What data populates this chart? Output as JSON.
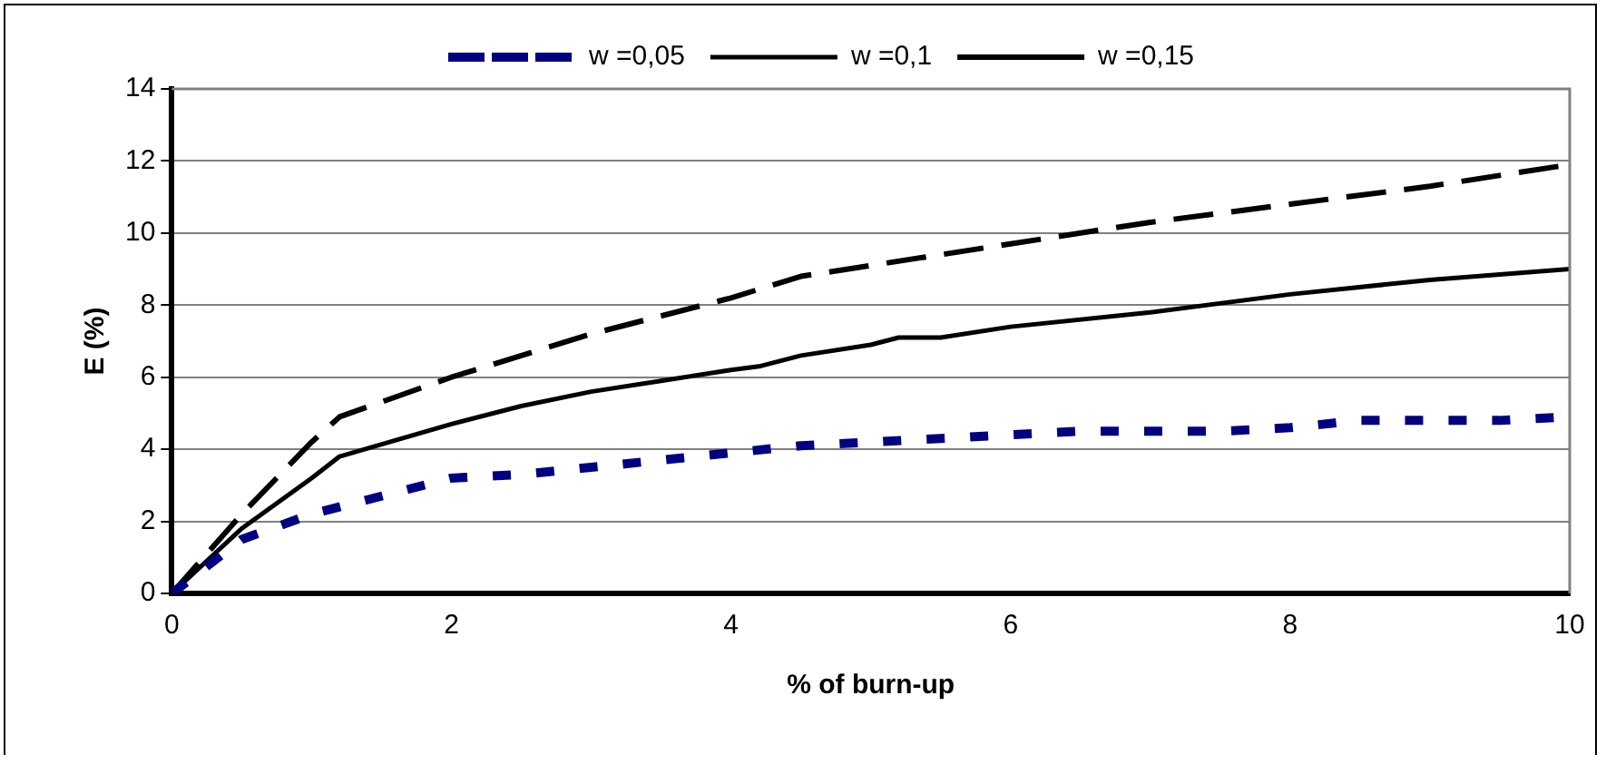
{
  "chart_data": {
    "type": "line",
    "xlabel": "% of burn-up",
    "ylabel": "E (%)",
    "xlim": [
      0,
      10
    ],
    "xticks": [
      0,
      2,
      4,
      6,
      8,
      10
    ],
    "ylim": [
      0,
      14
    ],
    "yticks": [
      0,
      2,
      4,
      6,
      8,
      10,
      12,
      14
    ],
    "grid": "y",
    "legend": "top",
    "marker": "none",
    "series": [
      {
        "name": "w =0,05",
        "color": "#000080",
        "line_style": "dotted",
        "x": [
          0,
          0.5,
          1,
          1.5,
          2,
          2.5,
          3,
          3.5,
          4,
          4.5,
          5,
          5.5,
          6,
          6.5,
          7,
          7.5,
          8,
          8.5,
          9,
          9.5,
          10
        ],
        "values": [
          0,
          1.5,
          2.2,
          2.7,
          3.2,
          3.3,
          3.5,
          3.7,
          3.9,
          4.1,
          4.2,
          4.3,
          4.4,
          4.5,
          4.5,
          4.5,
          4.6,
          4.8,
          4.8,
          4.8,
          4.9
        ]
      },
      {
        "name": "w =0,1",
        "color": "#000000",
        "line_style": "solid",
        "x": [
          0,
          0.5,
          1,
          1.2,
          2,
          2.5,
          3,
          3.5,
          4,
          4.2,
          4.5,
          5,
          5.2,
          5.5,
          6,
          7,
          8,
          9,
          10
        ],
        "values": [
          0,
          1.8,
          3.2,
          3.8,
          4.7,
          5.2,
          5.6,
          5.9,
          6.2,
          6.3,
          6.6,
          6.9,
          7.1,
          7.1,
          7.4,
          7.8,
          8.3,
          8.7,
          9.0
        ]
      },
      {
        "name": "w =0,15",
        "color": "#000000",
        "line_style": "dashed",
        "x": [
          0,
          0.5,
          1,
          1.2,
          2,
          3,
          4,
          4.5,
          5,
          6,
          7,
          8,
          9,
          10
        ],
        "values": [
          0,
          2.2,
          4.2,
          4.9,
          6.0,
          7.2,
          8.2,
          8.8,
          9.1,
          9.7,
          10.3,
          10.8,
          11.3,
          11.9
        ]
      }
    ]
  }
}
